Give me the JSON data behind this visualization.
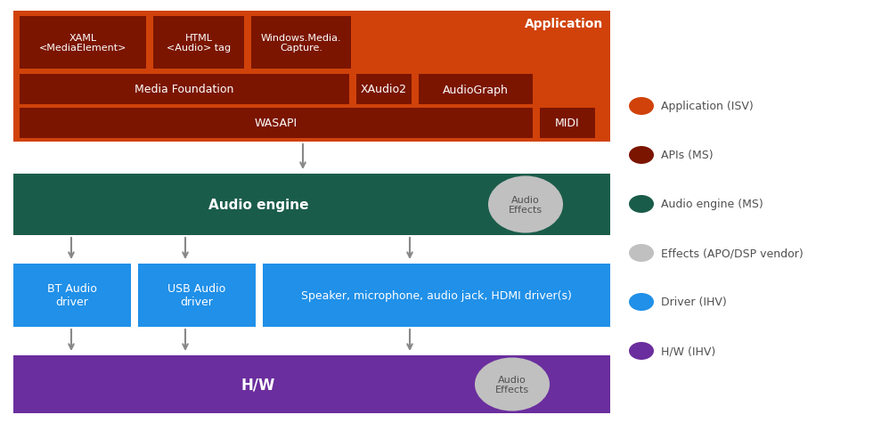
{
  "bg_color": "#ffffff",
  "app_color": "#D0420A",
  "api_color": "#7B1500",
  "engine_color": "#1A5C4A",
  "effect_color": "#C0C0C0",
  "driver_color": "#2090E8",
  "hw_color": "#6B2E9E",
  "arrow_color": "#888888",
  "text_white": "#ffffff",
  "text_dark": "#505050",
  "legend_items": [
    {
      "label": "Application (ISV)",
      "color": "#D0420A"
    },
    {
      "label": "APIs (MS)",
      "color": "#7B1500"
    },
    {
      "label": "Audio engine (MS)",
      "color": "#1A5C4A"
    },
    {
      "label": "Effects (APO/DSP vendor)",
      "color": "#C0C0C0"
    },
    {
      "label": "Driver (IHV)",
      "color": "#2090E8"
    },
    {
      "label": "H/W (IHV)",
      "color": "#6B2E9E"
    }
  ]
}
